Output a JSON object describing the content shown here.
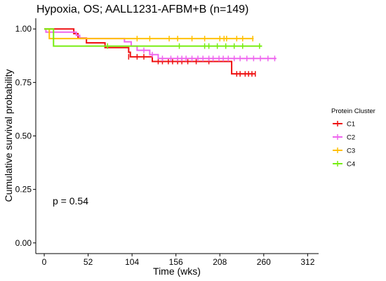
{
  "chart_data": {
    "type": "line",
    "subtype": "kaplan-meier",
    "title": "Hypoxia,  OS; AALL1231-AFBM+B (n=149)",
    "xlabel": "Time (wks)",
    "ylabel": "Cumulative survival probability",
    "xlim": [
      -10,
      325
    ],
    "ylim": [
      -0.05,
      1.05
    ],
    "xticks": [
      0,
      52,
      104,
      156,
      208,
      260,
      312
    ],
    "yticks": [
      0.0,
      0.25,
      0.5,
      0.75,
      1.0
    ],
    "ytick_labels": [
      "0.00",
      "0.25",
      "0.50",
      "0.75",
      "1.00"
    ],
    "grid": false,
    "annotation": "p = 0.54",
    "legend": {
      "title": "Protein Cluster",
      "placement": "right"
    },
    "series": [
      {
        "name": "C1",
        "color": "#EE1111",
        "steps": [
          [
            0,
            1.0
          ],
          [
            35,
            0.978
          ],
          [
            40,
            0.957
          ],
          [
            50,
            0.935
          ],
          [
            72,
            0.913
          ],
          [
            100,
            0.891
          ],
          [
            102,
            0.87
          ],
          [
            128,
            0.848
          ],
          [
            150,
            0.848
          ],
          [
            178,
            0.848
          ],
          [
            205,
            0.848
          ],
          [
            222,
            0.79
          ],
          [
            250,
            0.79
          ]
        ],
        "censors": [
          [
            100,
            0.87
          ],
          [
            110,
            0.87
          ],
          [
            118,
            0.87
          ],
          [
            135,
            0.848
          ],
          [
            140,
            0.848
          ],
          [
            147,
            0.848
          ],
          [
            152,
            0.848
          ],
          [
            158,
            0.848
          ],
          [
            163,
            0.848
          ],
          [
            170,
            0.848
          ],
          [
            180,
            0.848
          ],
          [
            195,
            0.848
          ],
          [
            228,
            0.79
          ],
          [
            232,
            0.79
          ],
          [
            238,
            0.79
          ],
          [
            242,
            0.79
          ],
          [
            246,
            0.79
          ],
          [
            250,
            0.79
          ]
        ]
      },
      {
        "name": "C2",
        "color": "#EE66EE",
        "steps": [
          [
            0,
            1.0
          ],
          [
            2,
            0.985
          ],
          [
            38,
            0.97
          ],
          [
            42,
            0.955
          ],
          [
            95,
            0.94
          ],
          [
            103,
            0.92
          ],
          [
            110,
            0.9
          ],
          [
            125,
            0.88
          ],
          [
            135,
            0.862
          ],
          [
            275,
            0.862
          ]
        ],
        "censors": [
          [
            118,
            0.9
          ],
          [
            128,
            0.88
          ],
          [
            140,
            0.862
          ],
          [
            150,
            0.862
          ],
          [
            158,
            0.862
          ],
          [
            163,
            0.862
          ],
          [
            168,
            0.862
          ],
          [
            175,
            0.862
          ],
          [
            182,
            0.862
          ],
          [
            188,
            0.862
          ],
          [
            195,
            0.862
          ],
          [
            200,
            0.862
          ],
          [
            207,
            0.862
          ],
          [
            212,
            0.862
          ],
          [
            218,
            0.862
          ],
          [
            225,
            0.862
          ],
          [
            232,
            0.862
          ],
          [
            240,
            0.862
          ],
          [
            248,
            0.862
          ],
          [
            256,
            0.862
          ],
          [
            265,
            0.862
          ],
          [
            273,
            0.862
          ]
        ]
      },
      {
        "name": "C3",
        "color": "#FFC000",
        "steps": [
          [
            0,
            1.0
          ],
          [
            6,
            0.955
          ],
          [
            248,
            0.955
          ]
        ],
        "censors": [
          [
            110,
            0.955
          ],
          [
            125,
            0.955
          ],
          [
            148,
            0.955
          ],
          [
            158,
            0.955
          ],
          [
            175,
            0.955
          ],
          [
            190,
            0.955
          ],
          [
            208,
            0.955
          ],
          [
            213,
            0.955
          ],
          [
            216,
            0.955
          ],
          [
            228,
            0.955
          ],
          [
            235,
            0.955
          ],
          [
            247,
            0.955
          ]
        ]
      },
      {
        "name": "C4",
        "color": "#77EE11",
        "steps": [
          [
            0,
            1.0
          ],
          [
            11,
            0.92
          ],
          [
            258,
            0.92
          ]
        ],
        "censors": [
          [
            75,
            0.92
          ],
          [
            160,
            0.92
          ],
          [
            190,
            0.92
          ],
          [
            195,
            0.92
          ],
          [
            205,
            0.92
          ],
          [
            215,
            0.92
          ],
          [
            225,
            0.92
          ],
          [
            235,
            0.92
          ],
          [
            255,
            0.92
          ]
        ]
      }
    ]
  }
}
